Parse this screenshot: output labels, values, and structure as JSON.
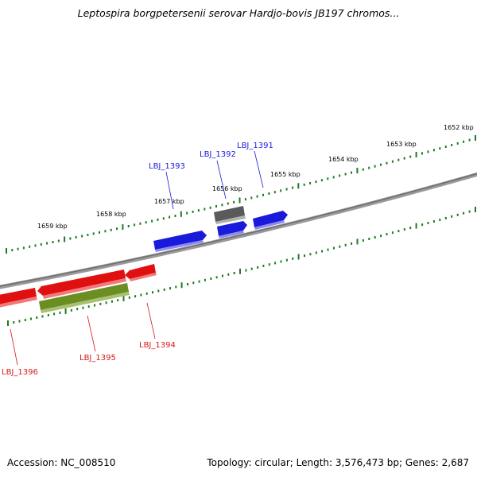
{
  "title": "Leptospira borgpetersenii serovar Hardjo-bovis JB197 chromos...",
  "footer": {
    "accession": "Accession: NC_008510",
    "summary": "Topology: circular; Length: 3,576,473 bp; Genes: 2,687"
  },
  "colors": {
    "forward_gene": "#1414e6",
    "reverse_gene": "#e81010",
    "pseudo_gene": "#555555",
    "rna_gene": "#6b8e23",
    "tick": "#1e7a1e",
    "backbone": "#8a8a8a"
  },
  "kbp_labels": [
    "1652 kbp",
    "1653 kbp",
    "1654 kbp",
    "1655 kbp",
    "1656 kbp",
    "1657 kbp",
    "1658 kbp",
    "1659 kbp"
  ],
  "gene_labels": {
    "LBJ_1391": "LBJ_1391",
    "LBJ_1392": "LBJ_1392",
    "LBJ_1393": "LBJ_1393",
    "LBJ_1394": "LBJ_1394",
    "LBJ_1395": "LBJ_1395",
    "LBJ_1396": "LBJ_1396"
  }
}
